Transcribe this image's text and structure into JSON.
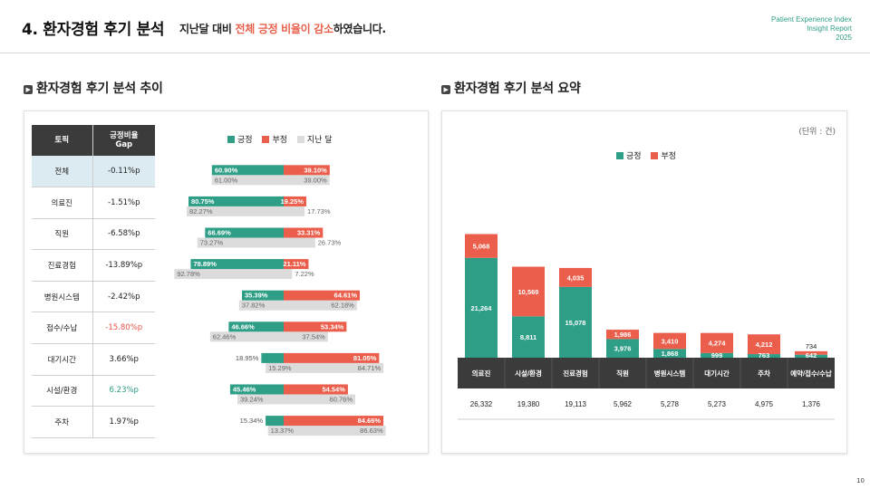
{
  "header": {
    "title": "4. 환자경험 후기 분석",
    "subtitle_prefix": "지난달 대비 ",
    "subtitle_highlight": "전체 긍정 비율이 감소",
    "subtitle_suffix": "하였습니다.",
    "brand_line1": "Patient Experience Index",
    "brand_line2": "Insight Report",
    "brand_line3": "2025"
  },
  "page_number": "10",
  "left_section": {
    "title": "환자경험 후기 분석 추이"
  },
  "right_section": {
    "title": "환자경험 후기 분석 요약",
    "unit_note": "(단위 : 건)"
  },
  "colors": {
    "positive": "#2e9e86",
    "negative": "#ea5e4b",
    "previous": "#dcdcdc",
    "gap_negative": "#e8534a",
    "gap_positive": "#2e9e86"
  },
  "table": {
    "col_topic": "토픽",
    "col_gap_line1": "긍정비율",
    "col_gap_line2": "Gap",
    "rows": [
      {
        "topic": "전체",
        "gap": "-0.11%p",
        "gap_color": ""
      },
      {
        "topic": "의료진",
        "gap": "-1.51%p",
        "gap_color": ""
      },
      {
        "topic": "직원",
        "gap": "-6.58%p",
        "gap_color": ""
      },
      {
        "topic": "진료경험",
        "gap": "-13.89%p",
        "gap_color": ""
      },
      {
        "topic": "병원시스템",
        "gap": "-2.42%p",
        "gap_color": ""
      },
      {
        "topic": "접수/수납",
        "gap": "-15.80%p",
        "gap_color": "negative"
      },
      {
        "topic": "대기시간",
        "gap": "3.66%p",
        "gap_color": ""
      },
      {
        "topic": "시설/환경",
        "gap": "6.23%p",
        "gap_color": "positive"
      },
      {
        "topic": "주차",
        "gap": "1.97%p",
        "gap_color": ""
      }
    ]
  },
  "chart_data": [
    {
      "type": "bar",
      "orientation": "horizontal-diverging",
      "legend": [
        "긍정",
        "부정",
        "지난 달"
      ],
      "categories": [
        "전체",
        "의료진",
        "직원",
        "진료경험",
        "병원시스템",
        "접수/수납",
        "대기시간",
        "시설/환경",
        "주차"
      ],
      "series": [
        {
          "name": "긍정",
          "values": [
            60.9,
            80.75,
            66.69,
            78.89,
            35.39,
            46.66,
            18.95,
            45.46,
            15.34
          ],
          "labels": [
            "60.90%",
            "80.75%",
            "66.69%",
            "78.89%",
            "35.39%",
            "46.66%",
            "18.95%",
            "45.46%",
            "15.34%"
          ]
        },
        {
          "name": "부정",
          "values": [
            39.1,
            19.25,
            33.31,
            21.11,
            64.61,
            53.34,
            81.05,
            54.54,
            84.66
          ],
          "labels": [
            "39.10%",
            "19.25%",
            "33.31%",
            "21.11%",
            "64.61%",
            "53.34%",
            "81.05%",
            "54.54%",
            "84.66%"
          ]
        },
        {
          "name": "지난 달 긍정",
          "values": [
            61.0,
            82.27,
            73.27,
            92.78,
            37.82,
            62.46,
            15.29,
            39.24,
            13.37
          ],
          "labels": [
            "61.00%",
            "82.27%",
            "73.27%",
            "92.78%",
            "37.82%",
            "62.46%",
            "15.29%",
            "39.24%",
            "13.37%"
          ]
        },
        {
          "name": "지난 달 부정",
          "values": [
            39.0,
            17.73,
            26.73,
            7.22,
            62.18,
            37.54,
            84.71,
            60.76,
            86.63
          ],
          "labels": [
            "39.00%",
            "17.73%",
            "26.73%",
            "7.22%",
            "62.18%",
            "37.54%",
            "84.71%",
            "60.76%",
            "86.63%"
          ]
        }
      ]
    },
    {
      "type": "bar",
      "orientation": "vertical-stacked",
      "legend": [
        "긍정",
        "부정"
      ],
      "categories": [
        "의료진",
        "시설/환경",
        "진료경험",
        "직원",
        "병원시스템",
        "대기시간",
        "주차",
        "예약/접수/수납"
      ],
      "series": [
        {
          "name": "긍정",
          "values": [
            21264,
            8811,
            15078,
            3976,
            1868,
            999,
            763,
            642
          ],
          "labels": [
            "21,264",
            "8,811",
            "15,078",
            "3,976",
            "1,868",
            "999",
            "763",
            "642"
          ]
        },
        {
          "name": "부정",
          "values": [
            5068,
            10569,
            4035,
            1986,
            3410,
            4274,
            4212,
            734
          ],
          "labels": [
            "5,068",
            "10,569",
            "4,035",
            "1,986",
            "3,410",
            "4,274",
            "4,212",
            "734"
          ]
        }
      ],
      "totals": [
        "26,332",
        "19,380",
        "19,113",
        "5,962",
        "5,278",
        "5,273",
        "4,975",
        "1,376"
      ],
      "ylim": [
        0,
        27000
      ]
    }
  ]
}
